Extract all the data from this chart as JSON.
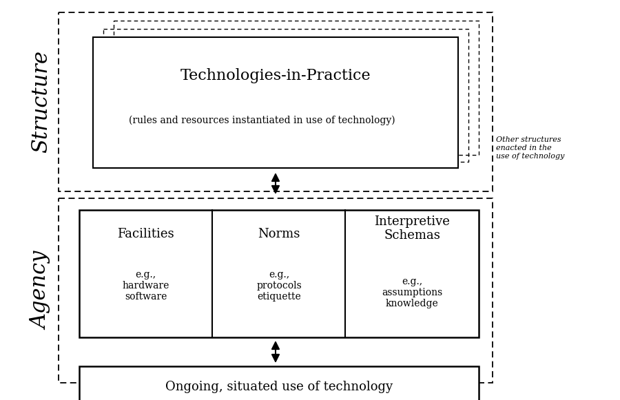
{
  "bg_color": "none",
  "structure_label": "Structure",
  "agency_label": "Agency",
  "tip_title": "Technologies-in-Practice",
  "tip_subtitle": "(rules and resources instantiated in use of technology)",
  "other_structures_text": "Other structures\nenacted in the\nuse of technology",
  "facilities_title": "Facilities",
  "facilities_sub": "e.g.,\nhardware\nsoftware",
  "norms_title": "Norms",
  "norms_sub": "e.g.,\nprotocols\netiquette",
  "interpretive_title": "Interpretive\nSchemas",
  "interpretive_sub": "e.g.,\nassumptions\nknowledge",
  "bottom_box_text": "Ongoing, situated use of technology",
  "fig_w": 9.0,
  "fig_h": 5.81,
  "dpi": 100
}
